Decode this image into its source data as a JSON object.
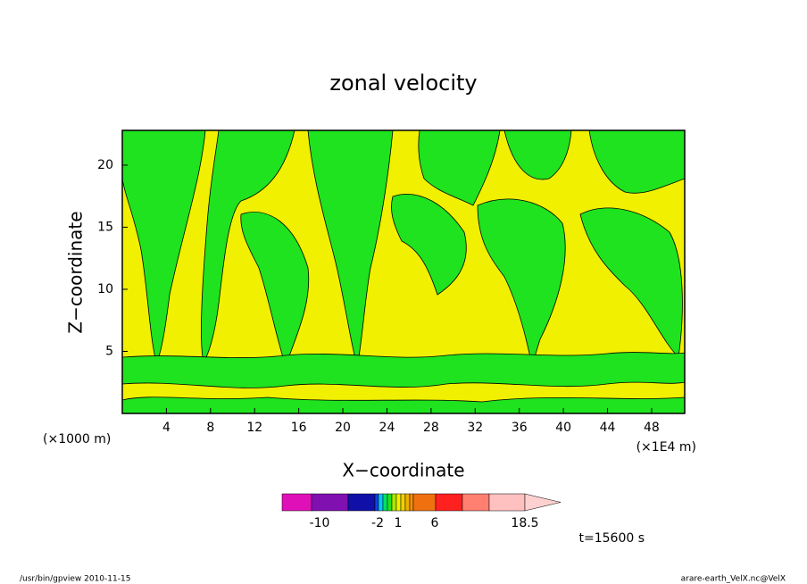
{
  "chart_data": {
    "type": "contour",
    "title": "zonal velocity",
    "xlabel": "X−coordinate",
    "ylabel": "Z−coordinate",
    "y_unit_label": "(×1000 m)",
    "x_unit_label": "(×1E4 m)",
    "xlim": [
      0,
      51
    ],
    "xticks": [
      4,
      8,
      12,
      16,
      20,
      24,
      28,
      32,
      36,
      40,
      44,
      48
    ],
    "ylim": [
      0,
      22.8
    ],
    "yticks": [
      5,
      10,
      15,
      20
    ],
    "colorbar": {
      "colors": [
        "#e010b8",
        "#8010b0",
        "#1010a8",
        "#1040e8",
        "#00c8f0",
        "#00e060",
        "#1ee31e",
        "#a8e800",
        "#f0f000",
        "#f0d000",
        "#f0b000",
        "#f09000",
        "#f07010",
        "#ff2020",
        "#ff8070",
        "#ffc0c0",
        "#ffd0d0"
      ],
      "ticks": [
        -10,
        -2,
        1,
        6,
        18.5
      ]
    },
    "time_label": "t=15600 s",
    "footer_left": "/usr/bin/gpview  2010-11-15",
    "footer_right": "arare-earth_VelX.nc@VelX"
  }
}
